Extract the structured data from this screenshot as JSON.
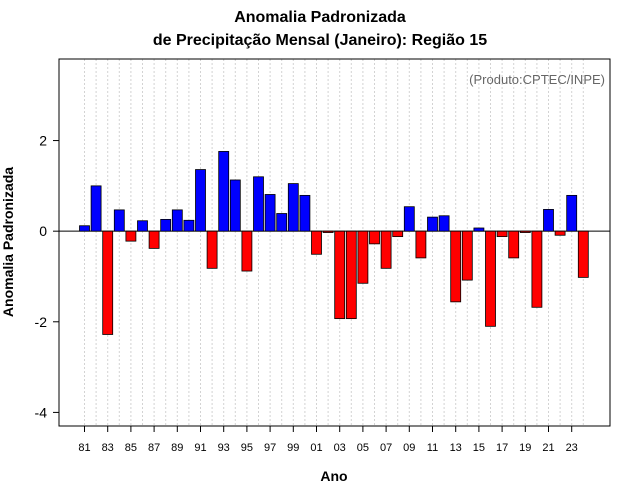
{
  "chart_data": {
    "type": "bar",
    "title_line1": "Anomalia Padronizada",
    "title_line2": "de Precipitação Mensal (Janeiro): Região 15",
    "xlabel": "Ano",
    "ylabel": "Anomalia Padronizada",
    "credit": "(Produto:CPTEC/INPE)",
    "ylim": [
      -4.3,
      3.8
    ],
    "yticks": [
      -4,
      -2,
      0,
      2
    ],
    "ytick_labels": [
      "-4",
      "-2",
      "0",
      "2"
    ],
    "categories": [
      "81",
      "82",
      "83",
      "84",
      "85",
      "86",
      "87",
      "88",
      "89",
      "90",
      "91",
      "92",
      "93",
      "94",
      "95",
      "96",
      "97",
      "98",
      "99",
      "00",
      "01",
      "02",
      "03",
      "04",
      "05",
      "06",
      "07",
      "08",
      "09",
      "10",
      "11",
      "12",
      "13",
      "14",
      "15",
      "16",
      "17",
      "18",
      "19",
      "20",
      "21",
      "22",
      "23",
      "24"
    ],
    "xtick_labels": [
      "81",
      "83",
      "85",
      "87",
      "89",
      "91",
      "93",
      "95",
      "97",
      "99",
      "01",
      "03",
      "05",
      "07",
      "09",
      "11",
      "13",
      "15",
      "17",
      "19",
      "21",
      "23"
    ],
    "values": [
      0.12,
      1.0,
      -2.28,
      0.47,
      -0.22,
      0.23,
      -0.38,
      0.26,
      0.47,
      0.24,
      1.36,
      -0.82,
      1.76,
      1.13,
      -0.88,
      1.2,
      0.81,
      0.39,
      1.05,
      0.79,
      -0.51,
      -0.03,
      -1.93,
      -1.93,
      -1.15,
      -0.28,
      -0.82,
      -0.12,
      0.54,
      -0.59,
      0.31,
      0.34,
      -1.56,
      -1.08,
      0.07,
      -2.1,
      -0.12,
      -0.59,
      -0.03,
      -1.68,
      0.48,
      -0.09,
      0.79,
      -1.02
    ],
    "colors": {
      "positive": "#0000ff",
      "negative": "#ff0000",
      "grid": "#d3d3d3"
    },
    "grid": true
  }
}
